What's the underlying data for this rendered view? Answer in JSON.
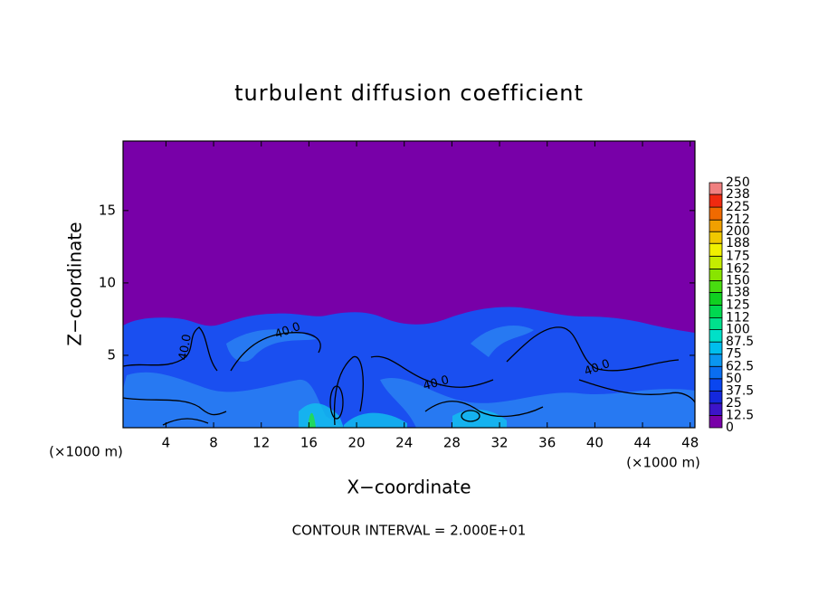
{
  "chart_data": {
    "type": "contour",
    "title": "turbulent diffusion coefficient",
    "x_label": "X−coordinate",
    "y_label": "Z−coordinate",
    "x_unit_label": "(×1000 m)",
    "footer": "CONTOUR INTERVAL = 2.000E+01",
    "xlim": [
      0.4,
      48.4
    ],
    "ylim": [
      0,
      19.8
    ],
    "xticks": [
      4,
      8,
      12,
      16,
      20,
      24,
      28,
      32,
      36,
      40,
      44,
      48
    ],
    "yticks": [
      5,
      10,
      15
    ],
    "contour_labels": [
      "40.0",
      "40.0",
      "40.0",
      "40.0"
    ],
    "colorbar": {
      "levels": [
        0,
        12.5,
        25,
        37.5,
        50,
        62.5,
        75,
        87.5,
        100,
        112,
        125,
        138,
        150,
        162,
        175,
        188,
        200,
        212,
        225,
        238,
        250
      ],
      "colors": [
        "#7800a8",
        "#3c14c8",
        "#1428dc",
        "#0a46f0",
        "#0a6ef0",
        "#0a96f0",
        "#00beee",
        "#00e0c8",
        "#00e08c",
        "#00d850",
        "#10d020",
        "#48dc10",
        "#88e400",
        "#c4ec00",
        "#f0f000",
        "#f0c800",
        "#f0a000",
        "#f06a00",
        "#f02a10",
        "#f08080"
      ]
    }
  }
}
